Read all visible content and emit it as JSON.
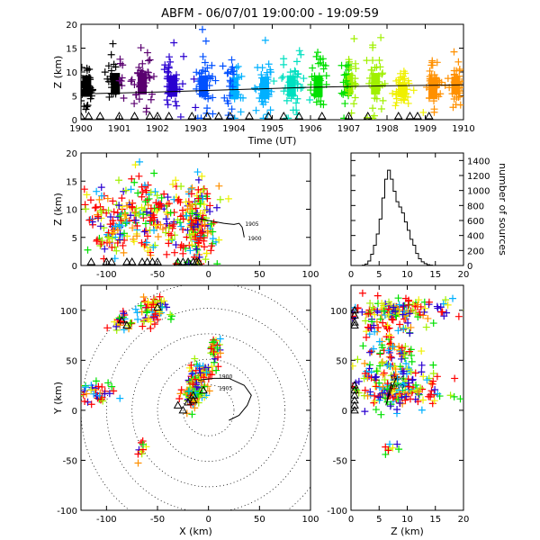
{
  "title": "ABFM - 06/07/01 19:00:00 - 19:09:59",
  "chart_data": [
    {
      "panel": "time-height",
      "type": "scatter",
      "xlabel": "Time (UT)",
      "ylabel": "Z (km)",
      "xlim": [
        1900,
        1910
      ],
      "ylim": [
        0,
        20
      ],
      "x_ticks": [
        "1900",
        "1901",
        "1902",
        "1903",
        "1904",
        "1905",
        "1906",
        "1907",
        "1908",
        "1909",
        "1910"
      ],
      "y_ticks": [
        "0",
        "5",
        "10",
        "15",
        "20"
      ],
      "color_by": "time",
      "color_scale": [
        "#000000",
        "#5a0070",
        "#2a00d0",
        "#0050ff",
        "#00b0ff",
        "#00e0c0",
        "#00e000",
        "#a0f000",
        "#f0f000",
        "#ff9000",
        "#ff0000"
      ],
      "trend_line": {
        "x": [
          1900,
          1902,
          1904,
          1906,
          1908,
          1910
        ],
        "y": [
          5.4,
          5.8,
          6.3,
          6.8,
          7.1,
          7.3
        ]
      },
      "clusters": [
        {
          "t": 1900.15,
          "z_mean": 7.5,
          "z_spread": 3
        },
        {
          "t": 1900.9,
          "z_mean": 8,
          "z_spread": 3
        },
        {
          "t": 1901.6,
          "z_mean": 8,
          "z_spread": 3
        },
        {
          "t": 1902.4,
          "z_mean": 7.5,
          "z_spread": 3
        },
        {
          "t": 1903.2,
          "z_mean": 7.5,
          "z_spread": 3
        },
        {
          "t": 1904.0,
          "z_mean": 7,
          "z_spread": 3
        },
        {
          "t": 1904.8,
          "z_mean": 7,
          "z_spread": 3
        },
        {
          "t": 1905.5,
          "z_mean": 7.5,
          "z_spread": 3
        },
        {
          "t": 1906.2,
          "z_mean": 7.5,
          "z_spread": 3
        },
        {
          "t": 1907.0,
          "z_mean": 8,
          "z_spread": 3
        },
        {
          "t": 1907.7,
          "z_mean": 8,
          "z_spread": 3
        },
        {
          "t": 1908.4,
          "z_mean": 6.5,
          "z_spread": 2
        },
        {
          "t": 1909.2,
          "z_mean": 7,
          "z_spread": 3
        },
        {
          "t": 1909.8,
          "z_mean": 7.5,
          "z_spread": 2.5
        }
      ],
      "station_markers_t": [
        1900,
        1900.2,
        1900.5,
        1901.0,
        1901.4,
        1901.8,
        1902.0,
        1902.3,
        1902.9,
        1903.3,
        1903.6,
        1903.9,
        1904.4,
        1904.9,
        1905.3,
        1905.7,
        1906.3,
        1907.0,
        1907.5,
        1908.3,
        1908.6,
        1908.8,
        1909.1
      ]
    },
    {
      "panel": "x-z",
      "type": "scatter",
      "xlabel": "",
      "ylabel": "Z (km)",
      "xlim": [
        -125,
        100
      ],
      "ylim": [
        0,
        20
      ],
      "x_ticks": [
        "-100",
        "-50",
        "0",
        "50",
        "100"
      ],
      "y_ticks": [
        "0",
        "5",
        "10",
        "15",
        "20"
      ],
      "clusters": [
        {
          "x": -105,
          "z": 7.5,
          "sx": 14,
          "sz": 3,
          "n": 70
        },
        {
          "x": -82,
          "z": 8,
          "sx": 9,
          "sz": 3,
          "n": 50
        },
        {
          "x": -60,
          "z": 9,
          "sx": 8,
          "sz": 4,
          "n": 90
        },
        {
          "x": -40,
          "z": 8,
          "sx": 6,
          "sz": 3,
          "n": 40
        },
        {
          "x": -12,
          "z": 7.5,
          "sx": 9,
          "sz": 3.5,
          "n": 180
        }
      ],
      "track_label_1": "1905",
      "track_label_2": "1900",
      "track": {
        "x": [
          -15,
          0,
          15,
          25,
          30,
          33,
          34,
          35
        ],
        "z": [
          8.5,
          8,
          7.5,
          7.3,
          7.5,
          6.8,
          6,
          5
        ]
      },
      "station_markers_x": [
        -115,
        -100,
        -95,
        -80,
        -75,
        -65,
        -60,
        -55,
        -50,
        -30,
        -25,
        -20,
        -15,
        -12,
        -10
      ]
    },
    {
      "panel": "histogram",
      "type": "bar",
      "xlabel": "",
      "ylabel": "number of sources",
      "xlim": [
        0,
        20
      ],
      "ylim": [
        0,
        1500
      ],
      "x_ticks": [
        "0",
        "5",
        "10",
        "15",
        "20"
      ],
      "y_ticks": [
        "0",
        "200",
        "400",
        "600",
        "800",
        "1000",
        "1200",
        "1400"
      ],
      "bin_width": 0.5,
      "bin_start": 2,
      "values": [
        5,
        20,
        60,
        150,
        270,
        420,
        620,
        900,
        1150,
        1270,
        1150,
        990,
        850,
        780,
        700,
        580,
        470,
        350,
        270,
        160,
        90,
        50,
        25,
        10,
        5,
        0
      ]
    },
    {
      "panel": "x-y",
      "type": "scatter",
      "xlabel": "X (km)",
      "ylabel": "Y (km)",
      "xlim": [
        -125,
        100
      ],
      "ylim": [
        -100,
        125
      ],
      "x_ticks": [
        "-100",
        "-50",
        "0",
        "50",
        "100"
      ],
      "y_ticks": [
        "-100",
        "-50",
        "0",
        "50",
        "100"
      ],
      "range_rings_km": [
        25,
        50,
        75,
        100,
        125
      ],
      "ring_center": [
        0,
        0
      ],
      "clusters": [
        {
          "x": -110,
          "y": 18,
          "sx": 10,
          "sy": 6,
          "n": 40
        },
        {
          "x": -85,
          "y": 88,
          "sx": 6,
          "sy": 6,
          "n": 25
        },
        {
          "x": -55,
          "y": 100,
          "sx": 7,
          "sy": 8,
          "n": 60
        },
        {
          "x": 5,
          "y": 60,
          "sx": 4,
          "sy": 5,
          "n": 30
        },
        {
          "x": -8,
          "y": 38,
          "sx": 6,
          "sy": 6,
          "n": 50
        },
        {
          "x": -14,
          "y": 18,
          "sx": 6,
          "sy": 7,
          "n": 90
        },
        {
          "x": -65,
          "y": -40,
          "sx": 4,
          "sy": 5,
          "n": 10
        }
      ],
      "track_label_1": "1900",
      "track_label_2": "1905",
      "track": {
        "x": [
          -10,
          5,
          20,
          35,
          42,
          38,
          30,
          20
        ],
        "y": [
          30,
          32,
          32,
          25,
          15,
          5,
          -5,
          -10
        ]
      },
      "station_markers": [
        [
          -85,
          90
        ],
        [
          -80,
          85
        ],
        [
          -50,
          103
        ],
        [
          -30,
          5
        ],
        [
          -20,
          8
        ],
        [
          -15,
          10
        ],
        [
          -15,
          15
        ],
        [
          -25,
          0
        ],
        [
          -5,
          20
        ]
      ]
    },
    {
      "panel": "z-y",
      "type": "scatter",
      "xlabel": "Z (km)",
      "ylabel": "",
      "xlim": [
        0,
        20
      ],
      "ylim": [
        -100,
        125
      ],
      "x_ticks": [
        "0",
        "5",
        "10",
        "15",
        "20"
      ],
      "y_ticks": [
        "-100",
        "-50",
        "0",
        "50",
        "100"
      ],
      "clusters": [
        {
          "z": 8,
          "y": 100,
          "sz": 4,
          "sy": 6,
          "n": 120
        },
        {
          "z": 7.5,
          "y": 85,
          "sz": 3,
          "sy": 6,
          "n": 40
        },
        {
          "z": 8,
          "y": 60,
          "sz": 2.5,
          "sy": 6,
          "n": 50
        },
        {
          "z": 7.5,
          "y": 38,
          "sz": 3,
          "sy": 6,
          "n": 60
        },
        {
          "z": 8.5,
          "y": 18,
          "sz": 4,
          "sy": 8,
          "n": 140
        },
        {
          "z": 7.5,
          "y": -38,
          "sz": 1.5,
          "sy": 5,
          "n": 8
        }
      ],
      "track_label_1": "1905",
      "track_label_2": "1900",
      "track": {
        "z": [
          8,
          7.5,
          6.8,
          6.2,
          6.5,
          7.2
        ],
        "y": [
          32,
          25,
          15,
          5,
          12,
          28
        ]
      },
      "station_markers_y": [
        100,
        95,
        88,
        85,
        20,
        15,
        10,
        5,
        0,
        25
      ]
    }
  ]
}
